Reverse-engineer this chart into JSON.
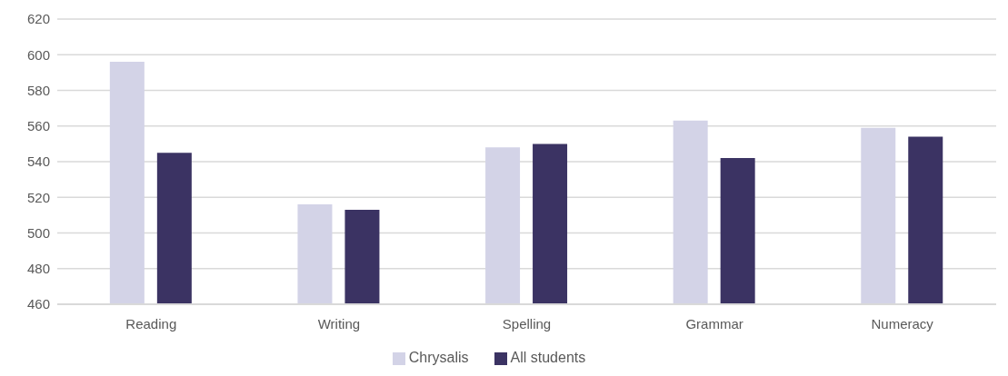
{
  "chart_data": {
    "type": "bar",
    "categories": [
      "Reading",
      "Writing",
      "Spelling",
      "Grammar",
      "Numeracy"
    ],
    "series": [
      {
        "name": "Chrysalis",
        "color": "#d3d3e7",
        "values": [
          596,
          516,
          548,
          563,
          559
        ]
      },
      {
        "name": "All students",
        "color": "#3b3363",
        "values": [
          545,
          513,
          550,
          542,
          554
        ]
      }
    ],
    "ylim": [
      460,
      620
    ],
    "yticks": [
      460,
      480,
      500,
      520,
      540,
      560,
      580,
      600,
      620
    ],
    "grid": "y",
    "legend": "bottom"
  }
}
